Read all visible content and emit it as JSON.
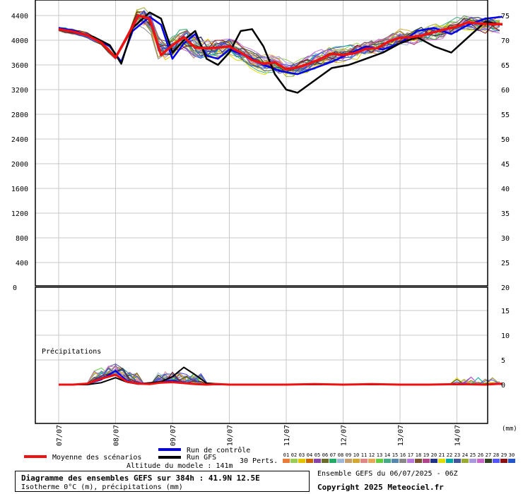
{
  "chart_data": [
    {
      "type": "line",
      "panel": "top",
      "y_left": {
        "ticks": [
          400,
          800,
          1200,
          1600,
          2000,
          2400,
          2800,
          3200,
          3600,
          4000,
          4400
        ],
        "bottom_label": "0",
        "range": [
          0,
          4600
        ]
      },
      "y_right": {
        "ticks": [
          25,
          30,
          35,
          40,
          45,
          50,
          55,
          60,
          65,
          70,
          75
        ],
        "bottom_label": "20"
      },
      "x_labels": [
        "07/07",
        "08/07",
        "09/07",
        "10/07",
        "11/07",
        "12/07",
        "13/07",
        "14/07"
      ],
      "grid": true,
      "mean_series": {
        "name": "Moyenne des scénarios",
        "color": "#ee1111",
        "x": [
          0,
          0.25,
          0.5,
          0.75,
          1,
          1.2,
          1.4,
          1.6,
          1.8,
          2,
          2.2,
          2.4,
          2.6,
          2.8,
          3,
          3.2,
          3.4,
          3.6,
          3.8,
          4,
          4.2,
          4.4,
          4.6,
          4.8,
          5,
          5.2,
          5.4,
          5.6,
          5.8,
          6,
          6.2,
          6.4,
          6.6,
          6.8,
          7,
          7.2,
          7.4,
          7.6,
          7.8
        ],
        "y": [
          4180,
          4140,
          4080,
          3960,
          3720,
          4050,
          4400,
          4350,
          3760,
          3920,
          4050,
          3880,
          3870,
          3880,
          3900,
          3800,
          3680,
          3620,
          3640,
          3530,
          3560,
          3620,
          3700,
          3780,
          3760,
          3790,
          3860,
          3870,
          3980,
          4040,
          4050,
          4080,
          4130,
          4180,
          4220,
          4290,
          4270,
          4260,
          4260
        ]
      },
      "control_series": {
        "name": "Run de contrôle",
        "color": "#0000ee",
        "x": [
          0,
          0.3,
          0.6,
          0.9,
          1.1,
          1.3,
          1.6,
          1.8,
          2,
          2.2,
          2.4,
          2.6,
          2.8,
          3,
          3.3,
          3.6,
          3.9,
          4.2,
          4.5,
          4.8,
          5.1,
          5.4,
          5.7,
          6,
          6.3,
          6.6,
          6.9,
          7.2,
          7.5,
          7.8
        ],
        "y": [
          4200,
          4150,
          4050,
          3900,
          3650,
          4150,
          4380,
          4250,
          3700,
          3950,
          4100,
          3750,
          3700,
          3850,
          3750,
          3600,
          3500,
          3450,
          3550,
          3650,
          3780,
          3900,
          3850,
          3950,
          4150,
          4200,
          4100,
          4250,
          4350,
          4380
        ]
      },
      "gfs_series": {
        "name": "Run GFS",
        "color": "#000000",
        "x": [
          0,
          0.3,
          0.6,
          0.9,
          1.1,
          1.3,
          1.6,
          1.8,
          2,
          2.2,
          2.4,
          2.6,
          2.8,
          3,
          3.2,
          3.4,
          3.6,
          3.8,
          4,
          4.2,
          4.5,
          4.8,
          5.1,
          5.4,
          5.7,
          6,
          6.3,
          6.6,
          6.9,
          7.2,
          7.5,
          7.8
        ],
        "y": [
          4180,
          4120,
          4060,
          3920,
          3620,
          4200,
          4450,
          4350,
          3800,
          4000,
          4150,
          3700,
          3600,
          3800,
          4150,
          4180,
          3900,
          3450,
          3200,
          3150,
          3350,
          3550,
          3600,
          3700,
          3800,
          3950,
          4050,
          3900,
          3800,
          4050,
          4300,
          4250
        ]
      },
      "perturbations_count_label": "30 Perts."
    },
    {
      "type": "line",
      "panel": "bottom",
      "title": "Précipitations",
      "y_right": {
        "ticks": [
          0,
          5,
          10,
          15,
          20
        ]
      },
      "unit_label": "(mm)",
      "mean_series": {
        "name": "Moyenne des scénarios",
        "x": [
          0,
          0.25,
          0.5,
          0.75,
          1,
          1.2,
          1.4,
          1.6,
          1.8,
          2,
          2.2,
          2.4,
          2.6,
          2.8,
          3,
          3.5,
          4,
          4.5,
          5,
          5.5,
          6,
          6.5,
          7,
          7.5,
          7.8
        ],
        "y": [
          0,
          0,
          0.2,
          1.2,
          2.0,
          0.6,
          0.2,
          0.1,
          0.4,
          0.5,
          0.3,
          0.1,
          0,
          0.1,
          0,
          0,
          0,
          0.1,
          0,
          0.1,
          0,
          0,
          0.1,
          0,
          0.2
        ]
      },
      "control_series": {
        "name": "Run de contrôle",
        "x": [
          0,
          0.5,
          0.75,
          1,
          1.2,
          1.4,
          1.8,
          2,
          2.2,
          2.4,
          2.6,
          3,
          4,
          5,
          6,
          7,
          7.8
        ],
        "y": [
          0,
          0.1,
          1.0,
          2.8,
          0.8,
          0.2,
          0.5,
          0.8,
          0.3,
          0.1,
          0,
          0,
          0,
          0,
          0,
          0,
          0.1
        ]
      },
      "gfs_series": {
        "name": "Run GFS",
        "x": [
          0,
          0.5,
          0.75,
          1,
          1.2,
          1.4,
          1.8,
          2,
          2.2,
          2.4,
          2.6,
          3,
          4,
          5,
          6,
          7,
          7.8
        ],
        "y": [
          0,
          0,
          0.4,
          1.4,
          0.5,
          0.1,
          0.6,
          1.6,
          3.5,
          2.0,
          0.3,
          0,
          0,
          0,
          0,
          0,
          0.1
        ]
      }
    }
  ],
  "legend": {
    "mean_label": "Moyenne des scénarios",
    "control_label": "Run de contrôle",
    "gfs_label": "Run GFS",
    "perts_label": "30 Perts.",
    "perturbation_numbers": [
      "01",
      "02",
      "03",
      "04",
      "05",
      "06",
      "07",
      "08",
      "09",
      "10",
      "11",
      "12",
      "13",
      "14",
      "15",
      "16",
      "17",
      "18",
      "19",
      "20",
      "21",
      "22",
      "23",
      "24",
      "25",
      "26",
      "27",
      "28",
      "29",
      "30"
    ],
    "perturbation_colors": [
      "#e87a3a",
      "#9acd55",
      "#e4c400",
      "#cc6600",
      "#8844aa",
      "#6b6b2a",
      "#22aa66",
      "#a0b8d8",
      "#c8a070",
      "#d4a830",
      "#e08888",
      "#e8a85a",
      "#66cc44",
      "#44aa88",
      "#5588aa",
      "#888888",
      "#bb77dd",
      "#7a5530",
      "#b04488",
      "#223388",
      "#dddd00",
      "#00aaaa",
      "#445599",
      "#99aa33",
      "#aa99dd",
      "#cc66cc",
      "#334422",
      "#5555ff",
      "#881111",
      "#2255cc"
    ]
  },
  "info": {
    "title": "Diagramme des ensembles GEFS sur 384h : 41.9N 12.5E",
    "subtitle": "Isotherme 0°C (m), précipitations (mm)",
    "altitude": "Altitude du modele : 141m",
    "run": "Ensemble GEFS du 06/07/2025 - 06Z",
    "copyright": "Copyright 2025 Meteociel.fr"
  }
}
